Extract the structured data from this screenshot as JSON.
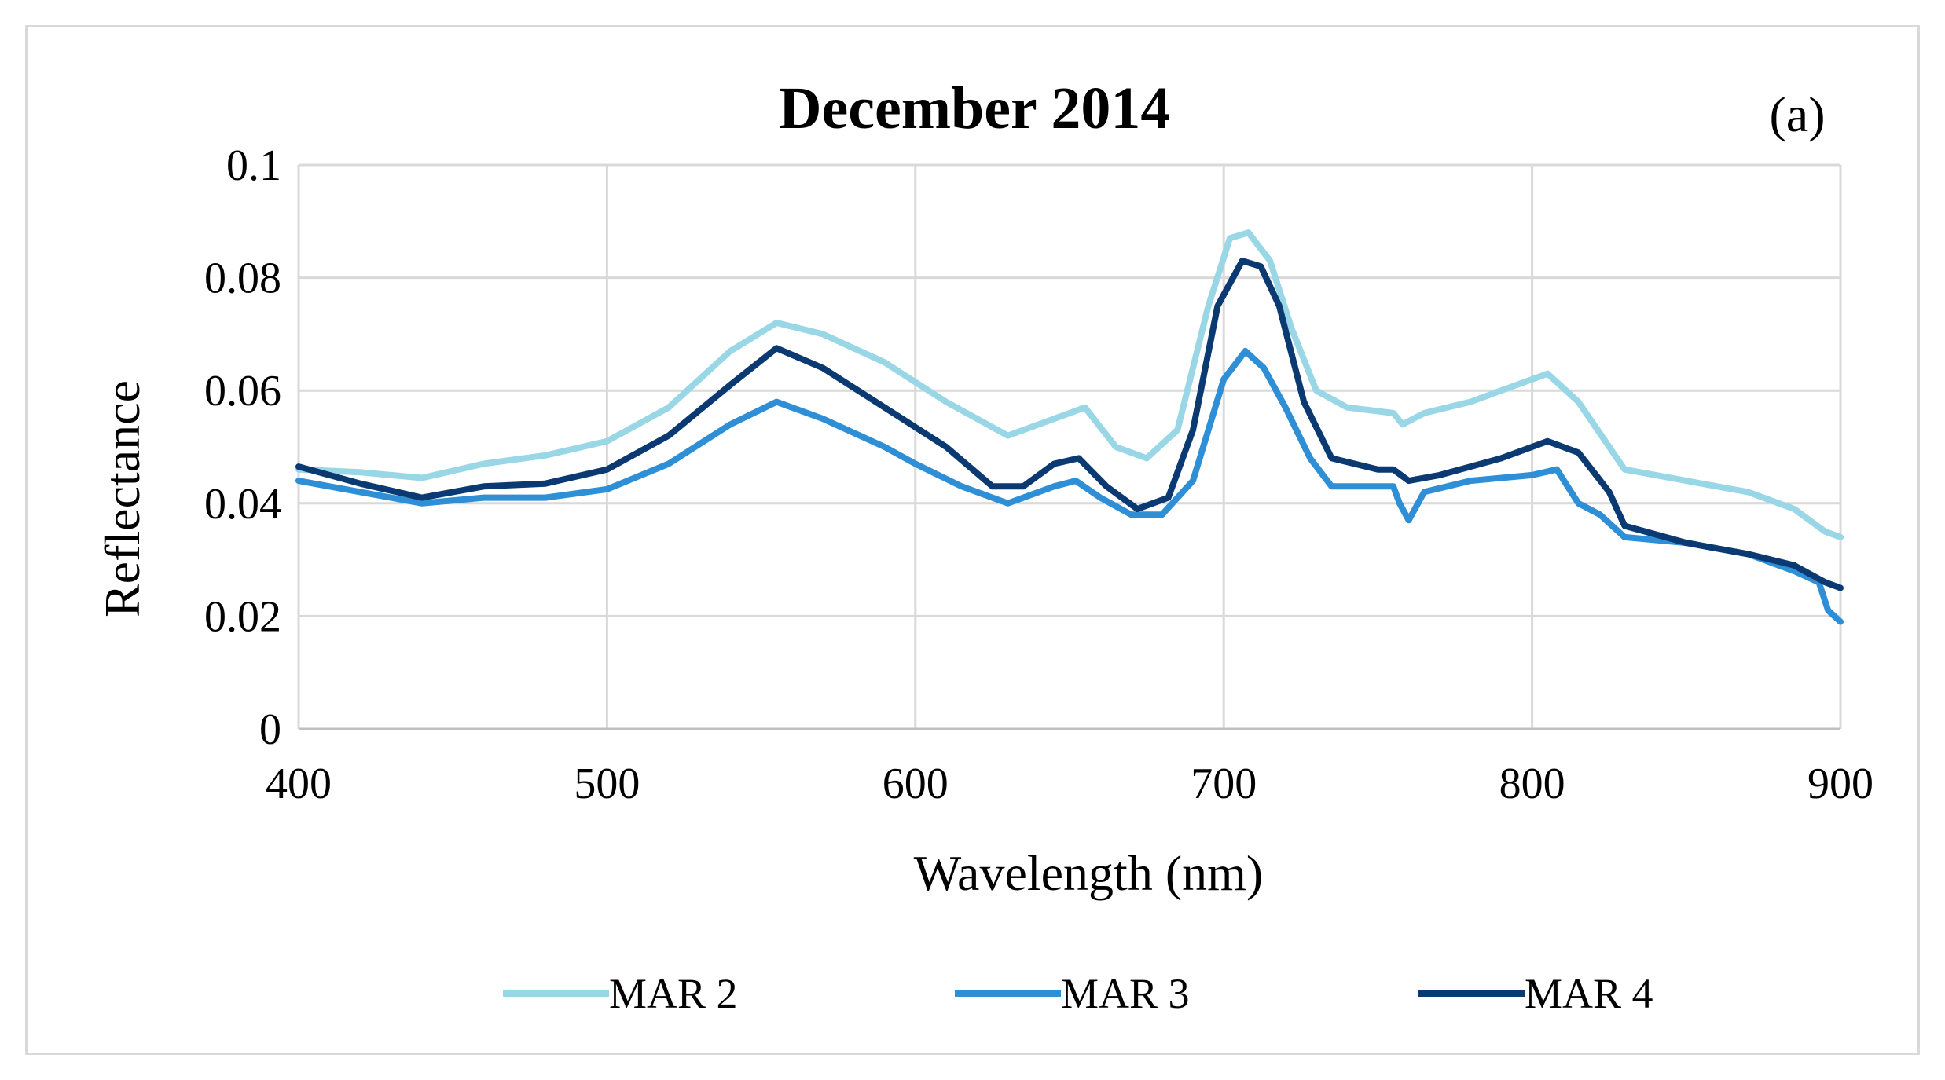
{
  "chart_data": {
    "type": "line",
    "title": "December 2014",
    "panel_label": "(a)",
    "xlabel": "Wavelength (nm)",
    "ylabel": "Reflectance",
    "xlim": [
      400,
      900
    ],
    "ylim": [
      0,
      0.1
    ],
    "x_ticks": [
      400,
      500,
      600,
      700,
      800,
      900
    ],
    "y_ticks": [
      0,
      0.02,
      0.04,
      0.06,
      0.08,
      0.1
    ],
    "x_tick_labels": [
      "400",
      "500",
      "600",
      "700",
      "800",
      "900"
    ],
    "y_tick_labels": [
      "0",
      "0.02",
      "0.04",
      "0.06",
      "0.08",
      "0.1"
    ],
    "grid": true,
    "legend_position": "bottom",
    "series": [
      {
        "name": "MAR 2",
        "color": "#9ad7e6",
        "points": [
          [
            400,
            0.046
          ],
          [
            420,
            0.0455
          ],
          [
            440,
            0.0445
          ],
          [
            460,
            0.047
          ],
          [
            480,
            0.0485
          ],
          [
            500,
            0.051
          ],
          [
            520,
            0.057
          ],
          [
            540,
            0.067
          ],
          [
            555,
            0.072
          ],
          [
            570,
            0.07
          ],
          [
            590,
            0.065
          ],
          [
            610,
            0.058
          ],
          [
            630,
            0.052
          ],
          [
            645,
            0.055
          ],
          [
            655,
            0.057
          ],
          [
            665,
            0.05
          ],
          [
            675,
            0.048
          ],
          [
            685,
            0.053
          ],
          [
            695,
            0.075
          ],
          [
            702,
            0.087
          ],
          [
            708,
            0.088
          ],
          [
            715,
            0.083
          ],
          [
            722,
            0.071
          ],
          [
            730,
            0.06
          ],
          [
            740,
            0.057
          ],
          [
            755,
            0.056
          ],
          [
            758,
            0.054
          ],
          [
            765,
            0.056
          ],
          [
            780,
            0.058
          ],
          [
            795,
            0.061
          ],
          [
            805,
            0.063
          ],
          [
            815,
            0.058
          ],
          [
            825,
            0.05
          ],
          [
            830,
            0.046
          ],
          [
            850,
            0.044
          ],
          [
            870,
            0.042
          ],
          [
            885,
            0.039
          ],
          [
            895,
            0.035
          ],
          [
            900,
            0.034
          ]
        ]
      },
      {
        "name": "MAR 3",
        "color": "#2f8fd6",
        "points": [
          [
            400,
            0.044
          ],
          [
            420,
            0.042
          ],
          [
            440,
            0.04
          ],
          [
            460,
            0.041
          ],
          [
            480,
            0.041
          ],
          [
            500,
            0.0425
          ],
          [
            520,
            0.047
          ],
          [
            540,
            0.054
          ],
          [
            555,
            0.058
          ],
          [
            570,
            0.055
          ],
          [
            590,
            0.05
          ],
          [
            600,
            0.047
          ],
          [
            615,
            0.043
          ],
          [
            630,
            0.04
          ],
          [
            645,
            0.043
          ],
          [
            652,
            0.044
          ],
          [
            660,
            0.041
          ],
          [
            670,
            0.038
          ],
          [
            680,
            0.038
          ],
          [
            690,
            0.044
          ],
          [
            700,
            0.062
          ],
          [
            707,
            0.067
          ],
          [
            713,
            0.064
          ],
          [
            720,
            0.057
          ],
          [
            728,
            0.048
          ],
          [
            735,
            0.043
          ],
          [
            755,
            0.043
          ],
          [
            757,
            0.04
          ],
          [
            760,
            0.037
          ],
          [
            765,
            0.042
          ],
          [
            780,
            0.044
          ],
          [
            800,
            0.045
          ],
          [
            808,
            0.046
          ],
          [
            815,
            0.04
          ],
          [
            822,
            0.038
          ],
          [
            830,
            0.034
          ],
          [
            850,
            0.033
          ],
          [
            870,
            0.031
          ],
          [
            885,
            0.028
          ],
          [
            893,
            0.026
          ],
          [
            896,
            0.021
          ],
          [
            900,
            0.019
          ]
        ]
      },
      {
        "name": "MAR 4",
        "color": "#0b3a72",
        "points": [
          [
            400,
            0.0465
          ],
          [
            420,
            0.0435
          ],
          [
            440,
            0.041
          ],
          [
            460,
            0.043
          ],
          [
            480,
            0.0435
          ],
          [
            500,
            0.046
          ],
          [
            520,
            0.052
          ],
          [
            540,
            0.061
          ],
          [
            555,
            0.0675
          ],
          [
            570,
            0.064
          ],
          [
            590,
            0.057
          ],
          [
            610,
            0.05
          ],
          [
            625,
            0.043
          ],
          [
            635,
            0.043
          ],
          [
            645,
            0.047
          ],
          [
            653,
            0.048
          ],
          [
            662,
            0.043
          ],
          [
            672,
            0.039
          ],
          [
            682,
            0.041
          ],
          [
            690,
            0.053
          ],
          [
            698,
            0.075
          ],
          [
            706,
            0.083
          ],
          [
            712,
            0.082
          ],
          [
            718,
            0.075
          ],
          [
            726,
            0.058
          ],
          [
            735,
            0.048
          ],
          [
            750,
            0.046
          ],
          [
            755,
            0.046
          ],
          [
            760,
            0.044
          ],
          [
            770,
            0.045
          ],
          [
            790,
            0.048
          ],
          [
            805,
            0.051
          ],
          [
            815,
            0.049
          ],
          [
            825,
            0.042
          ],
          [
            830,
            0.036
          ],
          [
            850,
            0.033
          ],
          [
            870,
            0.031
          ],
          [
            885,
            0.029
          ],
          [
            895,
            0.026
          ],
          [
            900,
            0.025
          ]
        ]
      }
    ]
  }
}
